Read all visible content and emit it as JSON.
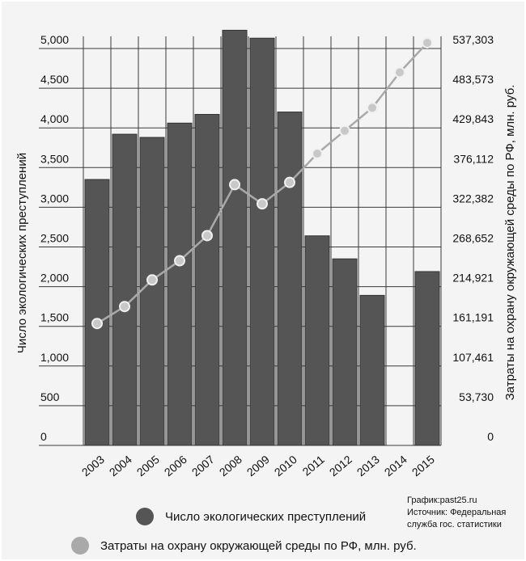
{
  "chart_data": {
    "type": "bar+line",
    "categories": [
      "2003",
      "2004",
      "2005",
      "2006",
      "2007",
      "2008",
      "2009",
      "2010",
      "2011",
      "2012",
      "2013",
      "2014",
      "2015"
    ],
    "series": [
      {
        "name": "Число экологических преступлений",
        "type": "bar",
        "axis": "left",
        "color": "#555555",
        "values": [
          3350,
          3920,
          3880,
          4060,
          4170,
          5230,
          5130,
          4200,
          2640,
          2350,
          1890,
          null,
          2190
        ]
      },
      {
        "name": "Затраты на охрану окружающей среды по РФ, млн. руб.",
        "type": "line",
        "axis": "right",
        "color": "#a9a9a9",
        "values": [
          165000,
          188000,
          224000,
          250000,
          284000,
          353000,
          327000,
          356000,
          395000,
          426000,
          457000,
          505000,
          545000
        ]
      }
    ],
    "ylabel_left": "Число экологических преступлений",
    "ylabel_right": "Затраты на охрану окружающей среды по РФ, млн. руб.",
    "left_ticks": [
      "0",
      "500",
      "1,000",
      "1,500",
      "2,000",
      "2,500",
      "3,000",
      "3,500",
      "4,000",
      "4,500",
      "5,000"
    ],
    "right_ticks": [
      "0",
      "53,730",
      "107,461",
      "161,191",
      "214,921",
      "268,652",
      "322,382",
      "376,112",
      "429,843",
      "483,573",
      "537,303"
    ],
    "ylim_left": [
      0,
      5000
    ],
    "ylim_right": [
      0,
      537303
    ],
    "grid": true
  },
  "legend": {
    "crimes": "Число экологических преступлений",
    "spending": "Затраты на охрану окружающей среды по РФ, млн. руб."
  },
  "source": {
    "line1": "График:past25.ru",
    "line2": "Источник: Федеральная",
    "line3": "служба гос. статистики"
  }
}
